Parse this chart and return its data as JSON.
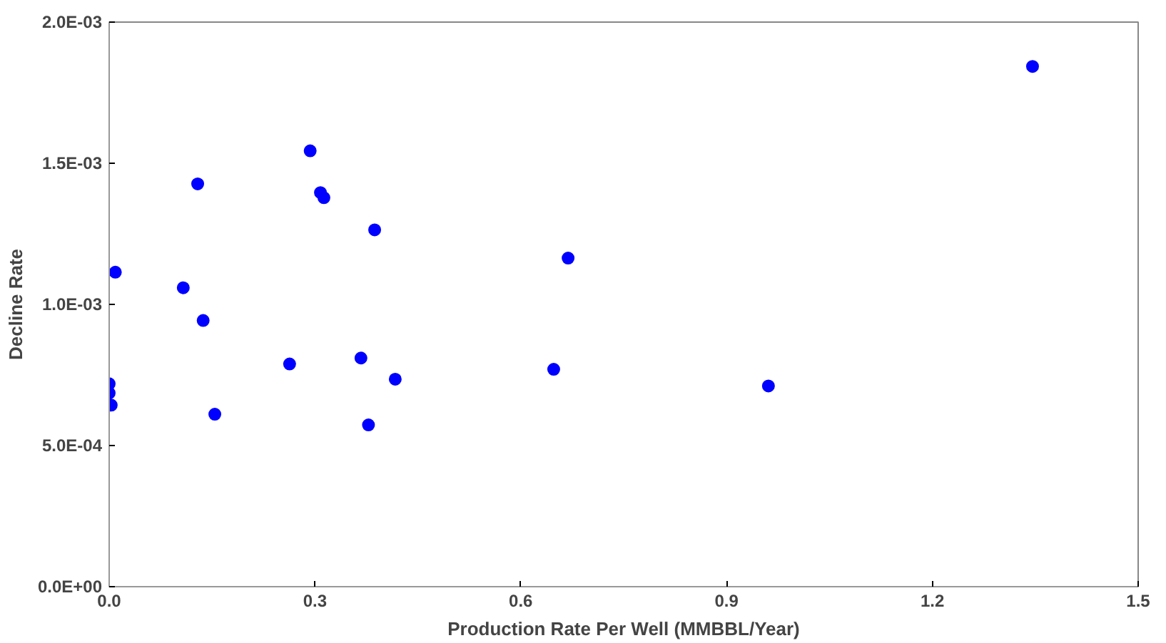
{
  "chart_data": {
    "type": "scatter",
    "xlabel": "Production Rate Per Well (MMBBL/Year)",
    "ylabel": "Decline Rate",
    "x": [
      0.293,
      0.129,
      0.308,
      0.313,
      0.387,
      0.669,
      0.009,
      0.108,
      0.137,
      0.263,
      0.367,
      0.417,
      0.648,
      0,
      0,
      0.003,
      0.154,
      0.378,
      1.346,
      0.961
    ],
    "values": [
      0.001544,
      0.001427,
      0.001396,
      0.001378,
      0.001264,
      0.001164,
      0.001114,
      0.001059,
      0.000943,
      0.000789,
      0.00081,
      0.000735,
      0.00077,
      0.000719,
      0.000686,
      0.000643,
      0.000611,
      0.000573,
      0.001843,
      0.000711
    ],
    "color": "#0000ff",
    "marker": "circle",
    "xlim": [
      0,
      1.5
    ],
    "xticks": [
      {
        "value": 0,
        "label": "0.0"
      },
      {
        "value": 0.3,
        "label": "0.3"
      },
      {
        "value": 0.6,
        "label": "0.6"
      },
      {
        "value": 0.9,
        "label": "0.9"
      },
      {
        "value": 1.2,
        "label": "1.2"
      },
      {
        "value": 1.5,
        "label": "1.5"
      }
    ],
    "ylim": [
      0,
      0.002
    ],
    "yticks": [
      {
        "value": 0,
        "label": "0.0E+00"
      },
      {
        "value": 0.0005,
        "label": "5.0E-04"
      },
      {
        "value": 0.001,
        "label": "1.0E-03"
      },
      {
        "value": 0.0015,
        "label": "1.5E-03"
      },
      {
        "value": 0.002,
        "label": "2.0E-03"
      }
    ],
    "grid": false
  }
}
